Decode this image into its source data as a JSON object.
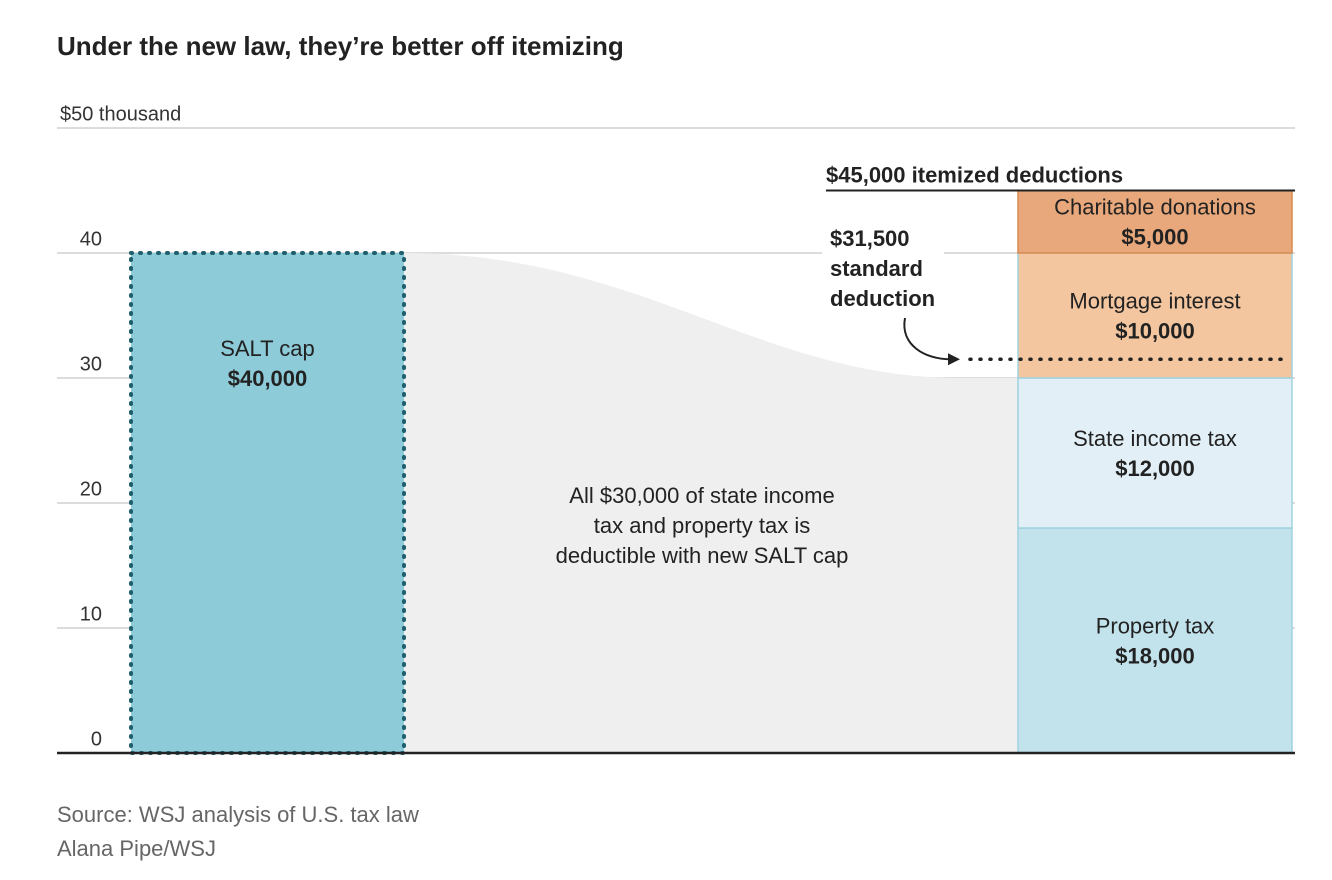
{
  "chart_data": {
    "type": "bar",
    "stacked": true,
    "title": "Under the new law, they’re better off itemizing",
    "categories": [
      null,
      null
    ],
    "series": [
      {
        "name": "SALT cap",
        "values": [
          40,
          null
        ],
        "value_labels": [
          "$40,000",
          null
        ],
        "color": "#8ecbd9",
        "border": "dotted"
      },
      {
        "name": "Property tax",
        "values": [
          null,
          18
        ],
        "value_labels": [
          null,
          "$18,000"
        ],
        "color": "#c3e3ec"
      },
      {
        "name": "State income tax",
        "values": [
          null,
          12
        ],
        "value_labels": [
          null,
          "$12,000"
        ],
        "color": "#e2eff6"
      },
      {
        "name": "Mortgage interest",
        "values": [
          null,
          10
        ],
        "value_labels": [
          null,
          "$10,000"
        ],
        "color": "#f3c6a0"
      },
      {
        "name": "Charitable donations",
        "values": [
          null,
          5
        ],
        "value_labels": [
          null,
          "$5,000"
        ],
        "color": "#e9a87b"
      }
    ],
    "ylim": [
      0,
      50
    ],
    "yticks": [
      0,
      10,
      20,
      30,
      40,
      {
        "value": 50,
        "label": "$50 thousand"
      }
    ],
    "grid": true,
    "standard_deduction": {
      "value": 31.5,
      "label": [
        "$31,500",
        "standard",
        "deduction"
      ]
    },
    "itemized_total": {
      "value": 45,
      "label": "$45,000 itemized deductions"
    },
    "annotation": [
      "All $30,000 of state income",
      "tax and property tax is",
      "deductible with new SALT cap"
    ],
    "source": [
      "Source: WSJ analysis of U.S. tax law",
      "Alana Pipe/WSJ"
    ]
  }
}
